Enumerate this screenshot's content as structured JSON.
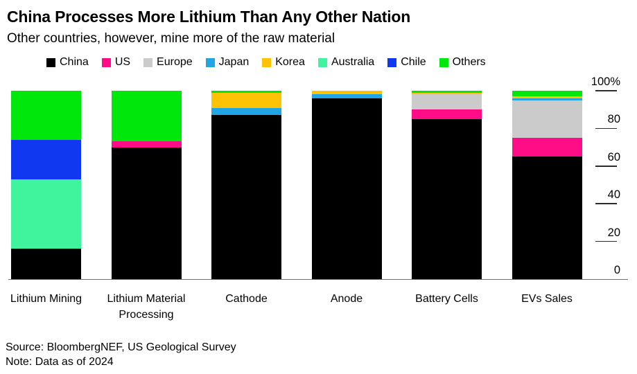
{
  "title": "China Processes More Lithium Than Any Other Nation",
  "subtitle": "Other countries, however, mine more of the raw material",
  "footer": {
    "source": "Source: BloombergNEF, US Geological Survey",
    "note": "Note: Data as of 2024"
  },
  "chart_data": {
    "type": "bar",
    "stacked": true,
    "unit": "%",
    "ylim": [
      0,
      100
    ],
    "yticks": [
      0,
      20,
      40,
      60,
      80,
      100
    ],
    "ytick_labels": [
      "0",
      "20",
      "40",
      "60",
      "80",
      "100%"
    ],
    "legend_position": "top",
    "grid": false,
    "categories": [
      "Lithium Mining",
      "Lithium Material Processing",
      "Cathode",
      "Anode",
      "Battery Cells",
      "EVs Sales"
    ],
    "series": [
      {
        "name": "China",
        "color": "#000000",
        "values": [
          16,
          70,
          87,
          96,
          85,
          65
        ]
      },
      {
        "name": "US",
        "color": "#FF0D86",
        "values": [
          0,
          3,
          0,
          0,
          5,
          10
        ]
      },
      {
        "name": "Europe",
        "color": "#CBCBCB",
        "values": [
          0,
          0,
          0,
          0,
          8,
          20
        ]
      },
      {
        "name": "Japan",
        "color": "#22A5E4",
        "values": [
          0,
          0,
          4,
          2,
          0,
          1
        ]
      },
      {
        "name": "Korea",
        "color": "#FFC205",
        "values": [
          0,
          0,
          8,
          2,
          1,
          1
        ]
      },
      {
        "name": "Australia",
        "color": "#40F49E",
        "values": [
          37,
          0,
          0,
          0,
          0,
          0
        ]
      },
      {
        "name": "Chile",
        "color": "#1038F0",
        "values": [
          21,
          0,
          0,
          0,
          0,
          0
        ]
      },
      {
        "name": "Others",
        "color": "#00E80B",
        "values": [
          26,
          27,
          1,
          0,
          1,
          3
        ]
      }
    ]
  }
}
